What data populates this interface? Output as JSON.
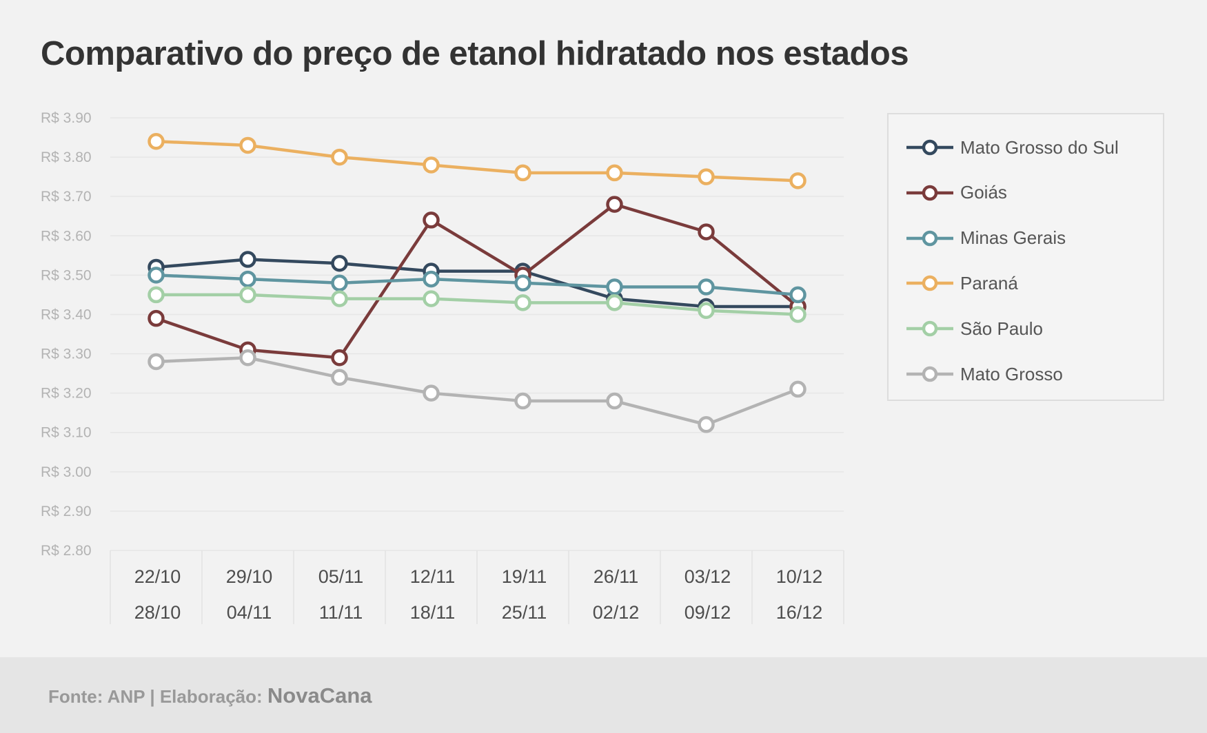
{
  "chart_data": {
    "type": "line",
    "title": "Comparativo do preço de etanol hidratado nos estados",
    "xlabel": "",
    "ylabel": "",
    "categories": [
      [
        "22/10",
        "28/10"
      ],
      [
        "29/10",
        "04/11"
      ],
      [
        "05/11",
        "11/11"
      ],
      [
        "12/11",
        "18/11"
      ],
      [
        "19/11",
        "25/11"
      ],
      [
        "26/11",
        "02/12"
      ],
      [
        "03/12",
        "09/12"
      ],
      [
        "10/12",
        "16/12"
      ]
    ],
    "ylim": [
      2.8,
      3.9
    ],
    "yticks": [
      {
        "value": 3.9,
        "label": "R$ 3.90"
      },
      {
        "value": 3.8,
        "label": "R$ 3.80"
      },
      {
        "value": 3.7,
        "label": "R$ 3.70"
      },
      {
        "value": 3.6,
        "label": "R$ 3.60"
      },
      {
        "value": 3.5,
        "label": "R$ 3.50"
      },
      {
        "value": 3.4,
        "label": "R$ 3.40"
      },
      {
        "value": 3.3,
        "label": "R$ 3.30"
      },
      {
        "value": 3.2,
        "label": "R$ 3.20"
      },
      {
        "value": 3.1,
        "label": "R$ 3.10"
      },
      {
        "value": 3.0,
        "label": "R$ 3.00"
      },
      {
        "value": 2.9,
        "label": "R$ 2.90"
      },
      {
        "value": 2.8,
        "label": "R$ 2.80"
      }
    ],
    "grid": true,
    "legend_position": "right",
    "series": [
      {
        "name": "Mato Grosso do Sul",
        "color": "#34495e",
        "values": [
          3.52,
          3.54,
          3.53,
          3.51,
          3.51,
          3.44,
          3.42,
          3.42
        ]
      },
      {
        "name": "Goiás",
        "color": "#7a3b3b",
        "values": [
          3.39,
          3.31,
          3.29,
          3.64,
          3.5,
          3.68,
          3.61,
          3.42
        ]
      },
      {
        "name": "Minas Gerais",
        "color": "#5f95a0",
        "values": [
          3.5,
          3.49,
          3.48,
          3.49,
          3.48,
          3.47,
          3.47,
          3.45
        ]
      },
      {
        "name": "Paraná",
        "color": "#ebb060",
        "values": [
          3.84,
          3.83,
          3.8,
          3.78,
          3.76,
          3.76,
          3.75,
          3.74
        ]
      },
      {
        "name": "São Paulo",
        "color": "#a3cfa6",
        "values": [
          3.45,
          3.45,
          3.44,
          3.44,
          3.43,
          3.43,
          3.41,
          3.4
        ]
      },
      {
        "name": "Mato Grosso",
        "color": "#b3b3b3",
        "values": [
          3.28,
          3.29,
          3.24,
          3.2,
          3.18,
          3.18,
          3.12,
          3.21
        ]
      }
    ]
  },
  "footer": {
    "source_text": "Fonte: ANP | Elaboração:",
    "brand": "NovaCana"
  }
}
